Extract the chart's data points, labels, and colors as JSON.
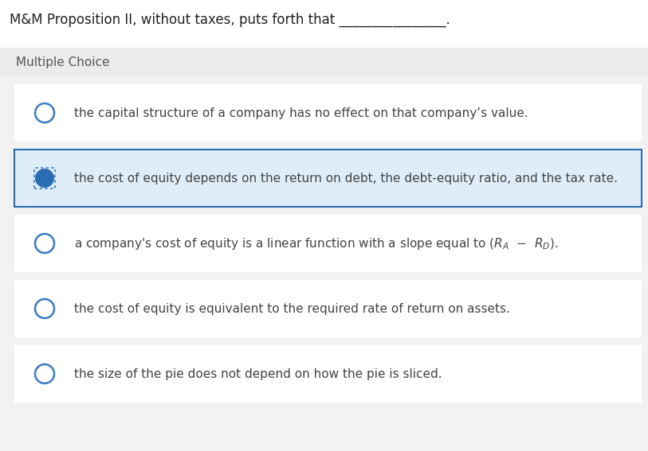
{
  "title": "M&M Proposition II, without taxes, puts forth that ________________.",
  "section_label": "Multiple Choice",
  "choices": [
    {
      "id": 0,
      "text": "the capital structure of a company has no effect on that company’s value.",
      "selected": false,
      "highlighted": false
    },
    {
      "id": 1,
      "text": "the cost of equity depends on the return on debt, the debt-equity ratio, and the tax rate.",
      "selected": true,
      "highlighted": true
    },
    {
      "id": 2,
      "text": "a company’s cost of equity is a linear function with a slope equal to ($R_A$ −  $R_D$).",
      "selected": false,
      "highlighted": false
    },
    {
      "id": 3,
      "text": "the cost of equity is equivalent to the required rate of return on assets.",
      "selected": false,
      "highlighted": false
    },
    {
      "id": 4,
      "text": "the size of the pie does not depend on how the pie is sliced.",
      "selected": false,
      "highlighted": false
    }
  ],
  "bg_color": "#ffffff",
  "outer_bg": "#f2f2f2",
  "section_bg": "#ebebeb",
  "choice_bg": "#ffffff",
  "gap_bg": "#f2f2f2",
  "highlighted_bg": "#deedf7",
  "highlighted_border": "#2a6db5",
  "title_color": "#222222",
  "section_label_color": "#555555",
  "choice_text_color": "#444444",
  "circle_color": "#3a7cc4",
  "filled_circle_color": "#2a6db5",
  "title_fontsize": 12,
  "section_fontsize": 11,
  "choice_fontsize": 11,
  "fig_width": 8.13,
  "fig_height": 5.67,
  "dpi": 100
}
